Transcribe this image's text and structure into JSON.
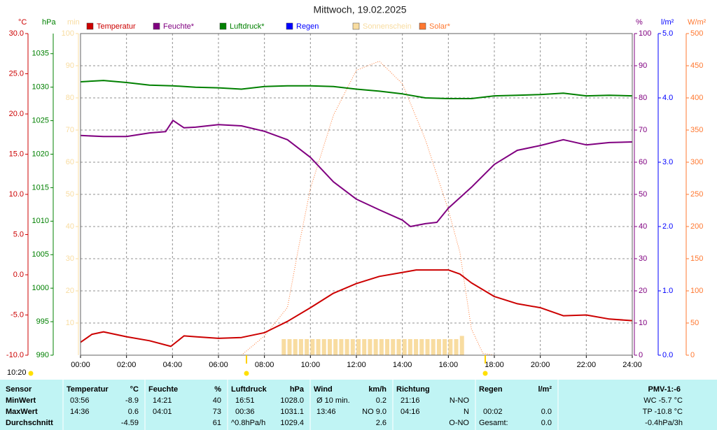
{
  "chart_data": {
    "type": "line",
    "title": "Mittwoch, 19.02.2025",
    "time_label": "10:20",
    "xlim": [
      0,
      24
    ],
    "xticks": [
      {
        "value": 0,
        "label": "00:00"
      },
      {
        "value": 2,
        "label": "02:00"
      },
      {
        "value": 4,
        "label": "04:00"
      },
      {
        "value": 6,
        "label": "06:00"
      },
      {
        "value": 8,
        "label": "08:00"
      },
      {
        "value": 10,
        "label": "10:00"
      },
      {
        "value": 12,
        "label": "12:00"
      },
      {
        "value": 14,
        "label": "14:00"
      },
      {
        "value": 16,
        "label": "16:00"
      },
      {
        "value": 18,
        "label": "18:00"
      },
      {
        "value": 20,
        "label": "20:00"
      },
      {
        "value": 22,
        "label": "22:00"
      },
      {
        "value": 24,
        "label": "24:00"
      }
    ],
    "ylabel": "°C",
    "ylim": [
      -10,
      30
    ],
    "yticks": [
      {
        "value": -10,
        "label": "-10.0"
      },
      {
        "value": -5,
        "label": "-5.0"
      },
      {
        "value": 0,
        "label": "0.0"
      },
      {
        "value": 5,
        "label": "5.0"
      },
      {
        "value": 10,
        "label": "10.0"
      },
      {
        "value": 15,
        "label": "15.0"
      },
      {
        "value": 20,
        "label": "20.0"
      },
      {
        "value": 25,
        "label": "25.0"
      },
      {
        "value": 30,
        "label": "30.0"
      }
    ],
    "y2label": "hPa",
    "y2lim": [
      990,
      1038
    ],
    "y2ticks": [
      990,
      995,
      1000,
      1005,
      1010,
      1015,
      1020,
      1025,
      1030,
      1035
    ],
    "y3label": "min",
    "y3lim": [
      0,
      100
    ],
    "y3ticks": [
      10,
      20,
      30,
      40,
      50,
      60,
      70,
      80,
      90,
      100
    ],
    "y4label": "%",
    "y4lim": [
      0,
      100
    ],
    "y4ticks": [
      0,
      10,
      20,
      30,
      40,
      50,
      60,
      70,
      80,
      90,
      100
    ],
    "y5label": "l/m²",
    "y5lim": [
      0,
      5
    ],
    "y5ticks": [
      {
        "value": 0,
        "label": "0.0"
      },
      {
        "value": 1,
        "label": "1.0"
      },
      {
        "value": 2,
        "label": "2.0"
      },
      {
        "value": 3,
        "label": "3.0"
      },
      {
        "value": 4,
        "label": "4.0"
      },
      {
        "value": 5,
        "label": "5.0"
      }
    ],
    "y6label": "W/m²",
    "y6lim": [
      0,
      500
    ],
    "y6ticks": [
      0,
      50,
      100,
      150,
      200,
      250,
      300,
      350,
      400,
      450,
      500
    ],
    "grid": true,
    "series": [
      {
        "name": "Temperatur",
        "color": "#cc0000",
        "axis": "y",
        "type": "line",
        "x": [
          0,
          0.5,
          1,
          2,
          3,
          3.93,
          4.5,
          5,
          6,
          7,
          8,
          9,
          10,
          11,
          12,
          13,
          14,
          14.6,
          15,
          16,
          16.5,
          17,
          18,
          19,
          20,
          21,
          22,
          23,
          24
        ],
        "values": [
          -8.4,
          -7.4,
          -7.1,
          -7.7,
          -8.2,
          -8.9,
          -7.6,
          -7.7,
          -7.9,
          -7.8,
          -7.2,
          -5.8,
          -4.1,
          -2.3,
          -1.1,
          -0.2,
          0.3,
          0.6,
          0.6,
          0.6,
          0.1,
          -1.0,
          -2.7,
          -3.6,
          -4.1,
          -5.1,
          -5.0,
          -5.5,
          -5.7
        ]
      },
      {
        "name": "Feuchte*",
        "color": "#800080",
        "axis": "y4",
        "type": "line",
        "x": [
          0,
          1,
          2,
          3,
          3.7,
          4.02,
          4.5,
          5,
          6,
          7,
          8,
          9,
          10,
          11,
          12,
          13,
          14,
          14.35,
          15,
          15.5,
          16,
          17,
          18,
          19,
          20,
          21,
          22,
          23,
          24
        ],
        "values": [
          68.3,
          68,
          68,
          69.1,
          69.5,
          73,
          70.7,
          70.9,
          71.7,
          71.3,
          69.6,
          67,
          61.5,
          53.9,
          48.5,
          45.2,
          42,
          40,
          40.9,
          41.3,
          45.7,
          52.2,
          59.3,
          63.7,
          65.2,
          67,
          65.4,
          66.1,
          66.3
        ]
      },
      {
        "name": "Luftdruck*",
        "color": "#008000",
        "axis": "y2",
        "type": "line",
        "x": [
          0,
          1,
          2,
          3,
          4,
          5,
          6,
          7,
          8,
          9,
          10,
          11,
          12,
          13,
          14,
          15,
          16,
          17,
          18,
          19,
          20,
          21,
          22,
          23,
          24
        ],
        "values": [
          1030.8,
          1031.0,
          1030.7,
          1030.3,
          1030.2,
          1030.0,
          1029.9,
          1029.7,
          1030.1,
          1030.2,
          1030.2,
          1030.1,
          1029.7,
          1029.4,
          1029.0,
          1028.4,
          1028.3,
          1028.3,
          1028.7,
          1028.8,
          1028.9,
          1029.1,
          1028.7,
          1028.8,
          1028.7
        ]
      },
      {
        "name": "Regen",
        "color": "#0000ff",
        "axis": "y5",
        "type": "bar",
        "x": [],
        "values": []
      },
      {
        "name": "Sonnenschein",
        "color": "#f8dca0",
        "axis": "y3",
        "type": "bar",
        "x": [
          8.75,
          9,
          9.25,
          9.5,
          9.75,
          10,
          10.25,
          10.5,
          10.75,
          11,
          11.25,
          11.5,
          11.75,
          12,
          12.25,
          12.5,
          12.75,
          13,
          13.25,
          13.5,
          13.75,
          14,
          14.25,
          14.5,
          14.75,
          15,
          15.25,
          15.5,
          15.75,
          16,
          16.25,
          16.5
        ],
        "values": [
          5,
          5,
          5,
          5,
          5,
          5,
          5,
          5,
          5,
          5,
          5,
          5,
          5,
          5,
          5,
          5,
          5,
          5,
          5,
          5,
          5,
          5,
          5,
          5,
          5,
          5,
          5,
          5,
          5,
          5,
          5,
          6
        ]
      },
      {
        "name": "Solar*",
        "color": "#ff7830",
        "axis": "y6",
        "type": "dotted",
        "x": [
          7,
          8,
          9,
          9.5,
          10,
          11,
          12,
          13,
          14,
          15,
          16,
          16.5,
          17,
          17.5,
          18
        ],
        "values": [
          0,
          30,
          74,
          170,
          259,
          373,
          443,
          457,
          422,
          335,
          226,
          160,
          41,
          3,
          0
        ]
      }
    ]
  },
  "table": {
    "header": [
      "Sensor",
      "Temperatur",
      "°C",
      "Feuchte",
      "%",
      "Luftdruck",
      "hPa",
      "Wind",
      "km/h",
      "Richtung",
      "Regen",
      "l/m²",
      "PMV-1:-6"
    ],
    "rows": [
      [
        "MinWert",
        "03:56",
        "-8.9",
        "14:21",
        "40",
        "16:51",
        "1028.0",
        "Ø 10 min.",
        "0.2",
        "21:16",
        "N-NO",
        "WC -5.7 °C"
      ],
      [
        "MaxWert",
        "14:36",
        "0.6",
        "04:01",
        "73",
        "00:36",
        "1031.1",
        "13:46",
        "NO 9.0",
        "04:16",
        "N",
        "00:02",
        "0.0",
        "TP -10.8 °C"
      ],
      [
        "Durchschnitt",
        "-4.59",
        "61",
        "^0.8hPa/h",
        "1029.4",
        "2.6",
        "O-NO",
        "Gesamt:",
        "0.0",
        "-0.4hPa/3h"
      ]
    ]
  }
}
